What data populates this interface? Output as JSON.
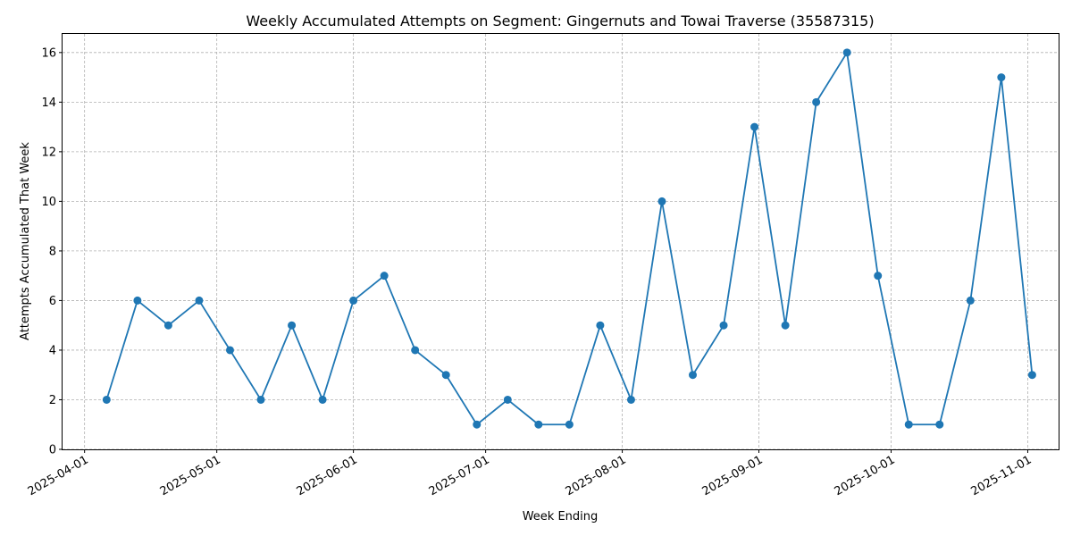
{
  "chart_data": {
    "type": "line",
    "title": "Weekly Accumulated Attempts on Segment: Gingernuts and Towai Traverse (35587315)",
    "xlabel": "Week Ending",
    "ylabel": "Attempts Accumulated That Week",
    "x_type": "date",
    "xlim": [
      "2025-03-27",
      "2025-11-08"
    ],
    "ylim": [
      0,
      16.75
    ],
    "grid": true,
    "legend": "none",
    "line_color": "#1f77b4",
    "x_ticks": [
      "2025-04-01",
      "2025-05-01",
      "2025-06-01",
      "2025-07-01",
      "2025-08-01",
      "2025-09-01",
      "2025-10-01",
      "2025-11-01"
    ],
    "y_ticks": [
      0,
      2,
      4,
      6,
      8,
      10,
      12,
      14,
      16
    ],
    "series": [
      {
        "x": [
          "2025-04-06",
          "2025-04-13",
          "2025-04-20",
          "2025-04-27",
          "2025-05-04",
          "2025-05-11",
          "2025-05-18",
          "2025-05-25",
          "2025-06-01",
          "2025-06-08",
          "2025-06-15",
          "2025-06-22",
          "2025-06-29",
          "2025-07-06",
          "2025-07-13",
          "2025-07-20",
          "2025-07-27",
          "2025-08-03",
          "2025-08-10",
          "2025-08-17",
          "2025-08-24",
          "2025-08-31",
          "2025-09-07",
          "2025-09-14",
          "2025-09-21",
          "2025-09-28",
          "2025-10-05",
          "2025-10-12",
          "2025-10-19",
          "2025-10-26",
          "2025-11-02"
        ],
        "y": [
          2,
          6,
          5,
          6,
          4,
          2,
          5,
          2,
          6,
          7,
          4,
          3,
          1,
          2,
          1,
          1,
          5,
          2,
          10,
          3,
          5,
          13,
          5,
          14,
          16,
          7,
          1,
          1,
          6,
          15,
          3
        ]
      }
    ]
  }
}
